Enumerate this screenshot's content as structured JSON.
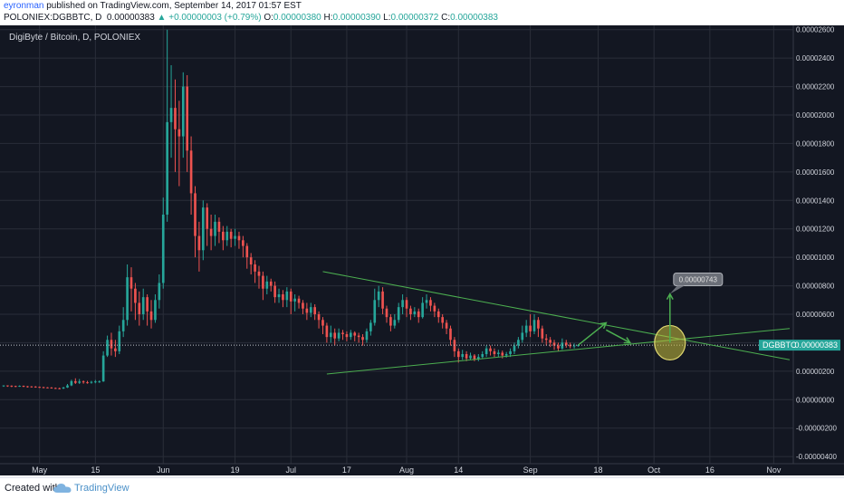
{
  "header": {
    "author": "eyronman",
    "published_text": "published on TradingView.com, September 14, 2017 01:57 EST",
    "symbol_line": "POLONIEX:DGBBTC, D",
    "last": "0.00000383",
    "change": "+0.00000003 (+0.79%)",
    "open_label": "O:",
    "open": "0.00000380",
    "high_label": "H:",
    "high": "0.00000390",
    "low_label": "L:",
    "low": "0.00000372",
    "close_label": "C:",
    "close": "0.00000383"
  },
  "chart_title": "DigiByte / Bitcoin, D, POLONIEX",
  "price_tag": {
    "symbol": "DGBBTC",
    "value": "0.00000383"
  },
  "target_callout": "0.00000743",
  "footer": {
    "created_with": "Created with",
    "brand": "TradingView"
  },
  "colors": {
    "background": "#131722",
    "up": "#26a69a",
    "down": "#ef5350",
    "trendline": "#4caf50",
    "circle_fill": "#c8c03c",
    "grid": "#2a2e39"
  },
  "chart_data": {
    "type": "candlestick",
    "title": "DigiByte / Bitcoin, D, POLONIEX",
    "x_tick_labels": [
      "May",
      "15",
      "Jun",
      "19",
      "Jul",
      "17",
      "Aug",
      "14",
      "Sep",
      "18",
      "Oct",
      "16",
      "Nov"
    ],
    "x_tick_dates": [
      "2017-05-01",
      "2017-05-15",
      "2017-06-01",
      "2017-06-19",
      "2017-07-03",
      "2017-07-17",
      "2017-08-01",
      "2017-08-14",
      "2017-09-01",
      "2017-09-18",
      "2017-10-02",
      "2017-10-16",
      "2017-11-01"
    ],
    "y_tick_labels": [
      "0.00002600",
      "0.00002400",
      "0.00002200",
      "0.00002000",
      "0.00001800",
      "0.00001600",
      "0.00001400",
      "0.00001200",
      "0.00001000",
      "0.00000800",
      "0.00000600",
      "0.00000400",
      "0.00000200",
      "0.00000000",
      "-0.00000200",
      "-0.00000400"
    ],
    "y_ticks": [
      2600,
      2400,
      2200,
      2000,
      1800,
      1600,
      1400,
      1200,
      1000,
      800,
      600,
      400,
      200,
      0,
      -200,
      -400
    ],
    "y_unit": "1e-8 BTC",
    "ylim": [
      -450,
      2630
    ],
    "x_range": [
      "2017-04-22",
      "2017-11-05"
    ],
    "last_price": 383,
    "candles": [
      [
        "2017-04-22",
        100,
        100,
        90,
        100
      ],
      [
        "2017-04-23",
        100,
        98,
        90,
        100
      ],
      [
        "2017-04-24",
        98,
        96,
        88,
        100
      ],
      [
        "2017-04-25",
        96,
        95,
        88,
        98
      ],
      [
        "2017-04-26",
        95,
        97,
        90,
        100
      ],
      [
        "2017-04-27",
        97,
        94,
        88,
        99
      ],
      [
        "2017-04-28",
        94,
        93,
        85,
        96
      ],
      [
        "2017-04-29",
        93,
        92,
        85,
        95
      ],
      [
        "2017-04-30",
        92,
        90,
        84,
        95
      ],
      [
        "2017-05-01",
        90,
        88,
        82,
        92
      ],
      [
        "2017-05-02",
        88,
        86,
        80,
        90
      ],
      [
        "2017-05-03",
        86,
        85,
        80,
        88
      ],
      [
        "2017-05-04",
        85,
        82,
        78,
        88
      ],
      [
        "2017-05-05",
        82,
        80,
        76,
        85
      ],
      [
        "2017-05-06",
        80,
        78,
        74,
        84
      ],
      [
        "2017-05-07",
        78,
        85,
        75,
        90
      ],
      [
        "2017-05-08",
        85,
        100,
        82,
        110
      ],
      [
        "2017-05-09",
        100,
        130,
        95,
        140
      ],
      [
        "2017-05-10",
        130,
        118,
        110,
        150
      ],
      [
        "2017-05-11",
        118,
        128,
        110,
        145
      ],
      [
        "2017-05-12",
        128,
        122,
        112,
        135
      ],
      [
        "2017-05-13",
        122,
        120,
        112,
        132
      ],
      [
        "2017-05-14",
        120,
        125,
        112,
        132
      ],
      [
        "2017-05-15",
        125,
        128,
        115,
        138
      ],
      [
        "2017-05-16",
        128,
        128,
        118,
        135
      ],
      [
        "2017-05-17",
        128,
        310,
        125,
        340
      ],
      [
        "2017-05-18",
        310,
        420,
        300,
        450
      ],
      [
        "2017-05-19",
        420,
        360,
        310,
        470
      ],
      [
        "2017-05-20",
        360,
        340,
        300,
        420
      ],
      [
        "2017-05-21",
        340,
        480,
        320,
        520
      ],
      [
        "2017-05-22",
        480,
        560,
        440,
        650
      ],
      [
        "2017-05-23",
        560,
        860,
        520,
        950
      ],
      [
        "2017-05-24",
        860,
        780,
        620,
        930
      ],
      [
        "2017-05-25",
        780,
        680,
        560,
        820
      ],
      [
        "2017-05-26",
        680,
        600,
        520,
        760
      ],
      [
        "2017-05-27",
        600,
        720,
        560,
        780
      ],
      [
        "2017-05-28",
        720,
        620,
        520,
        740
      ],
      [
        "2017-05-29",
        620,
        560,
        500,
        700
      ],
      [
        "2017-05-30",
        560,
        700,
        540,
        740
      ],
      [
        "2017-05-31",
        700,
        820,
        640,
        880
      ],
      [
        "2017-06-01",
        820,
        1300,
        780,
        1420
      ],
      [
        "2017-06-02",
        1300,
        1950,
        1250,
        2600
      ],
      [
        "2017-06-03",
        1950,
        2050,
        1700,
        2350
      ],
      [
        "2017-06-04",
        2050,
        1900,
        1600,
        2250
      ],
      [
        "2017-06-05",
        1900,
        1850,
        1500,
        2100
      ],
      [
        "2017-06-06",
        1850,
        2200,
        1700,
        2300
      ],
      [
        "2017-06-07",
        2200,
        1750,
        1600,
        2280
      ],
      [
        "2017-06-08",
        1750,
        1450,
        1300,
        1850
      ],
      [
        "2017-06-09",
        1450,
        1150,
        1000,
        1500
      ],
      [
        "2017-06-10",
        1150,
        1050,
        900,
        1250
      ],
      [
        "2017-06-11",
        1050,
        1350,
        980,
        1400
      ],
      [
        "2017-06-12",
        1350,
        1200,
        1080,
        1380
      ],
      [
        "2017-06-13",
        1200,
        1150,
        1050,
        1300
      ],
      [
        "2017-06-14",
        1150,
        1250,
        1080,
        1300
      ],
      [
        "2017-06-15",
        1250,
        1180,
        1100,
        1280
      ],
      [
        "2017-06-16",
        1180,
        1120,
        1050,
        1220
      ],
      [
        "2017-06-17",
        1120,
        1180,
        1080,
        1220
      ],
      [
        "2017-06-18",
        1180,
        1130,
        1070,
        1200
      ],
      [
        "2017-06-19",
        1130,
        1150,
        1080,
        1200
      ],
      [
        "2017-06-20",
        1150,
        1120,
        1060,
        1180
      ],
      [
        "2017-06-21",
        1120,
        1080,
        1000,
        1150
      ],
      [
        "2017-06-22",
        1080,
        1000,
        920,
        1100
      ],
      [
        "2017-06-23",
        1000,
        950,
        880,
        1030
      ],
      [
        "2017-06-24",
        950,
        900,
        820,
        980
      ],
      [
        "2017-06-25",
        900,
        870,
        780,
        940
      ],
      [
        "2017-06-26",
        870,
        780,
        700,
        900
      ],
      [
        "2017-06-27",
        780,
        830,
        740,
        870
      ],
      [
        "2017-06-28",
        830,
        800,
        760,
        850
      ],
      [
        "2017-06-29",
        800,
        720,
        680,
        830
      ],
      [
        "2017-06-30",
        720,
        740,
        680,
        780
      ],
      [
        "2017-07-01",
        740,
        700,
        650,
        770
      ],
      [
        "2017-07-02",
        700,
        760,
        650,
        790
      ],
      [
        "2017-07-03",
        760,
        690,
        600,
        780
      ],
      [
        "2017-07-04",
        690,
        710,
        620,
        740
      ],
      [
        "2017-07-05",
        710,
        680,
        640,
        730
      ],
      [
        "2017-07-06",
        680,
        640,
        600,
        700
      ],
      [
        "2017-07-07",
        640,
        610,
        560,
        680
      ],
      [
        "2017-07-08",
        610,
        650,
        580,
        680
      ],
      [
        "2017-07-09",
        650,
        600,
        560,
        670
      ],
      [
        "2017-07-10",
        600,
        560,
        500,
        620
      ],
      [
        "2017-07-11",
        560,
        520,
        460,
        580
      ],
      [
        "2017-07-12",
        520,
        440,
        400,
        540
      ],
      [
        "2017-07-13",
        440,
        470,
        400,
        520
      ],
      [
        "2017-07-14",
        470,
        430,
        380,
        500
      ],
      [
        "2017-07-15",
        430,
        470,
        410,
        500
      ],
      [
        "2017-07-16",
        470,
        460,
        420,
        490
      ],
      [
        "2017-07-17",
        460,
        440,
        410,
        480
      ],
      [
        "2017-07-18",
        440,
        470,
        420,
        490
      ],
      [
        "2017-07-19",
        470,
        450,
        410,
        480
      ],
      [
        "2017-07-20",
        450,
        440,
        400,
        470
      ],
      [
        "2017-07-21",
        440,
        420,
        380,
        460
      ],
      [
        "2017-07-22",
        420,
        480,
        400,
        500
      ],
      [
        "2017-07-23",
        480,
        540,
        450,
        560
      ],
      [
        "2017-07-24",
        540,
        700,
        520,
        780
      ],
      [
        "2017-07-25",
        700,
        760,
        650,
        800
      ],
      [
        "2017-07-26",
        760,
        640,
        600,
        790
      ],
      [
        "2017-07-27",
        640,
        580,
        540,
        660
      ],
      [
        "2017-07-28",
        580,
        520,
        480,
        600
      ],
      [
        "2017-07-29",
        520,
        560,
        500,
        600
      ],
      [
        "2017-07-30",
        560,
        650,
        540,
        680
      ],
      [
        "2017-07-31",
        650,
        700,
        600,
        740
      ],
      [
        "2017-08-01",
        700,
        640,
        580,
        720
      ],
      [
        "2017-08-02",
        640,
        600,
        560,
        660
      ],
      [
        "2017-08-03",
        600,
        620,
        580,
        650
      ],
      [
        "2017-08-04",
        620,
        580,
        540,
        640
      ],
      [
        "2017-08-05",
        580,
        680,
        570,
        720
      ],
      [
        "2017-08-06",
        680,
        700,
        640,
        740
      ],
      [
        "2017-08-07",
        700,
        660,
        620,
        720
      ],
      [
        "2017-08-08",
        660,
        620,
        580,
        680
      ],
      [
        "2017-08-09",
        620,
        580,
        540,
        640
      ],
      [
        "2017-08-10",
        580,
        540,
        500,
        600
      ],
      [
        "2017-08-11",
        540,
        500,
        460,
        560
      ],
      [
        "2017-08-12",
        500,
        420,
        380,
        520
      ],
      [
        "2017-08-13",
        420,
        340,
        300,
        440
      ],
      [
        "2017-08-14",
        340,
        300,
        260,
        360
      ],
      [
        "2017-08-15",
        300,
        320,
        280,
        350
      ],
      [
        "2017-08-16",
        320,
        290,
        270,
        340
      ],
      [
        "2017-08-17",
        290,
        310,
        280,
        330
      ],
      [
        "2017-08-18",
        310,
        285,
        270,
        320
      ],
      [
        "2017-08-19",
        285,
        300,
        270,
        320
      ],
      [
        "2017-08-20",
        300,
        320,
        290,
        340
      ],
      [
        "2017-08-21",
        320,
        360,
        300,
        380
      ],
      [
        "2017-08-22",
        360,
        340,
        310,
        380
      ],
      [
        "2017-08-23",
        340,
        320,
        300,
        360
      ],
      [
        "2017-08-24",
        320,
        330,
        300,
        350
      ],
      [
        "2017-08-25",
        330,
        310,
        290,
        345
      ],
      [
        "2017-08-26",
        310,
        320,
        295,
        335
      ],
      [
        "2017-08-27",
        320,
        340,
        300,
        360
      ],
      [
        "2017-08-28",
        340,
        380,
        320,
        400
      ],
      [
        "2017-08-29",
        380,
        420,
        360,
        440
      ],
      [
        "2017-08-30",
        420,
        470,
        400,
        520
      ],
      [
        "2017-08-31",
        470,
        520,
        440,
        560
      ],
      [
        "2017-09-01",
        520,
        480,
        440,
        600
      ],
      [
        "2017-09-02",
        480,
        560,
        460,
        600
      ],
      [
        "2017-09-03",
        560,
        500,
        440,
        580
      ],
      [
        "2017-09-04",
        500,
        430,
        400,
        520
      ],
      [
        "2017-09-05",
        430,
        420,
        380,
        460
      ],
      [
        "2017-09-06",
        420,
        400,
        370,
        440
      ],
      [
        "2017-09-07",
        400,
        380,
        350,
        420
      ],
      [
        "2017-09-08",
        380,
        360,
        340,
        400
      ],
      [
        "2017-09-09",
        360,
        400,
        350,
        430
      ],
      [
        "2017-09-10",
        400,
        385,
        365,
        420
      ],
      [
        "2017-09-11",
        385,
        375,
        360,
        400
      ],
      [
        "2017-09-12",
        375,
        380,
        360,
        395
      ],
      [
        "2017-09-13",
        380,
        383,
        372,
        390
      ]
    ],
    "drawings": {
      "upper_trendline": [
        [
          "2017-07-11",
          900
        ],
        [
          "2017-11-05",
          280
        ]
      ],
      "lower_trendline": [
        [
          "2017-07-12",
          180
        ],
        [
          "2017-11-05",
          500
        ]
      ],
      "forecast_arrow_1": [
        [
          "2017-09-13",
          383
        ],
        [
          "2017-09-20",
          540
        ]
      ],
      "forecast_arrow_2": [
        [
          "2017-09-20",
          490
        ],
        [
          "2017-09-26",
          400
        ]
      ],
      "breakout_arrow": [
        [
          "2017-10-06",
          400
        ],
        [
          "2017-10-06",
          743
        ]
      ],
      "apex_circle_center": [
        "2017-10-06",
        400
      ],
      "target_value": 743
    }
  }
}
